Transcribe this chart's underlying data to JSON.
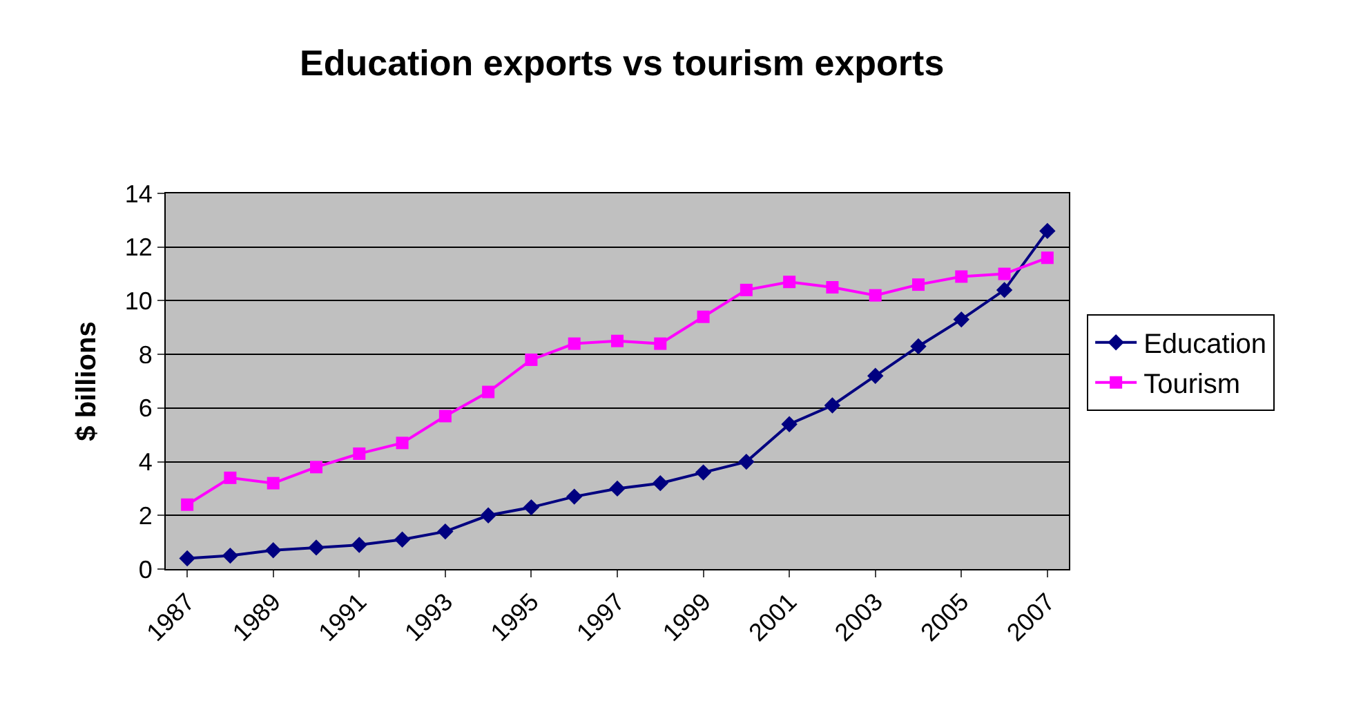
{
  "chart_data": {
    "type": "line",
    "title": "Education exports vs tourism exports",
    "ylabel": "$ billions",
    "categories": [
      "1987",
      null,
      "1989",
      null,
      "1991",
      null,
      "1993",
      null,
      "1995",
      null,
      "1997",
      null,
      "1999",
      null,
      "2001",
      null,
      "2003",
      null,
      "2005",
      null,
      "2007"
    ],
    "series": [
      {
        "name": "Education",
        "color": "#000080",
        "marker": "diamond",
        "values": [
          0.4,
          0.5,
          0.7,
          0.8,
          0.9,
          1.1,
          1.4,
          2.0,
          2.3,
          2.7,
          3.0,
          3.2,
          3.6,
          4.0,
          5.4,
          6.1,
          7.2,
          8.3,
          9.3,
          10.4,
          12.6
        ]
      },
      {
        "name": "Tourism",
        "color": "#ff00ff",
        "marker": "square",
        "values": [
          2.4,
          3.4,
          3.2,
          3.8,
          4.3,
          4.7,
          5.7,
          6.6,
          7.8,
          8.4,
          8.5,
          8.4,
          9.4,
          10.4,
          10.7,
          10.5,
          10.2,
          10.6,
          10.9,
          11.0,
          11.6
        ]
      }
    ],
    "ylim": [
      0,
      14
    ],
    "yticks": [
      0,
      2,
      4,
      6,
      8,
      10,
      12,
      14
    ],
    "grid": "y",
    "legend": "right",
    "line_style": "solid"
  }
}
